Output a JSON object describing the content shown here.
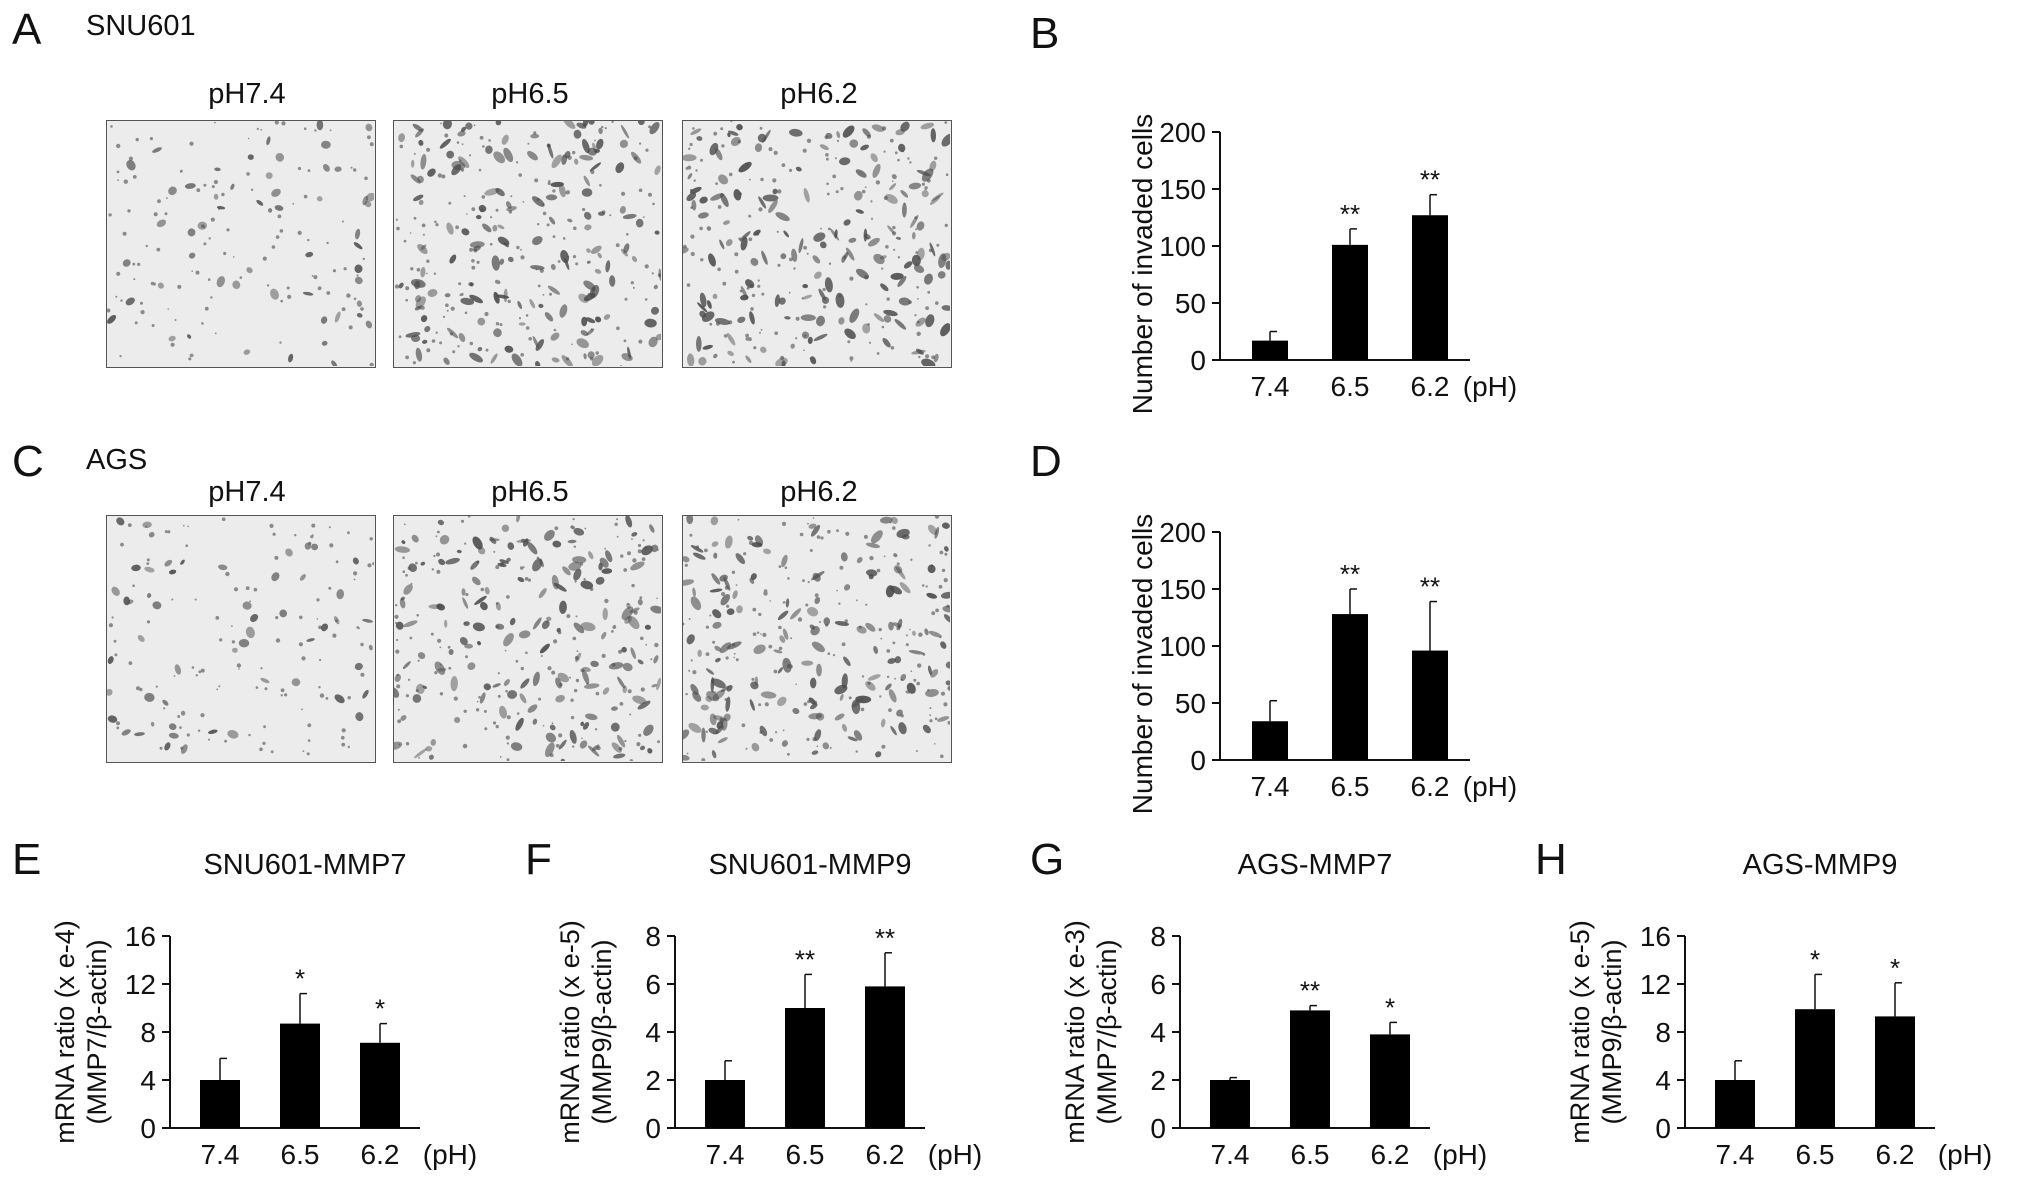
{
  "panels": {
    "A": {
      "letter": "A",
      "cell_line": "SNU601",
      "image_labels": [
        "pH7.4",
        "pH6.5",
        "pH6.2"
      ],
      "images": [
        {
          "label": "pH7.4",
          "density": "low"
        },
        {
          "label": "pH6.5",
          "density": "high"
        },
        {
          "label": "pH6.2",
          "density": "high"
        }
      ]
    },
    "C": {
      "letter": "C",
      "cell_line": "AGS",
      "image_labels": [
        "pH7.4",
        "pH6.5",
        "pH6.2"
      ],
      "images": [
        {
          "label": "pH7.4",
          "density": "low"
        },
        {
          "label": "pH6.5",
          "density": "high"
        },
        {
          "label": "pH6.2",
          "density": "high"
        }
      ]
    },
    "B": {
      "letter": "B"
    },
    "D": {
      "letter": "D"
    },
    "E": {
      "letter": "E"
    },
    "F": {
      "letter": "F"
    },
    "G": {
      "letter": "G"
    },
    "H": {
      "letter": "H"
    }
  },
  "colors": {
    "bar": "#000000",
    "axis": "#111111",
    "image_bg": "#ececec",
    "cells": "#4a4a4a"
  },
  "chart_data": [
    {
      "id": "B",
      "type": "bar",
      "title": "",
      "categories": [
        "7.4",
        "6.5",
        "6.2"
      ],
      "x_unit": "(pH)",
      "ylabel": "Number of invaded cells",
      "ylim": [
        0,
        200
      ],
      "yticks": [
        0,
        50,
        100,
        150,
        200
      ],
      "values": [
        17,
        101,
        127
      ],
      "errors": [
        8,
        14,
        18
      ],
      "significance": [
        "",
        "**",
        "**"
      ]
    },
    {
      "id": "D",
      "type": "bar",
      "title": "",
      "categories": [
        "7.4",
        "6.5",
        "6.2"
      ],
      "x_unit": "(pH)",
      "ylabel": "Number of invaded cells",
      "ylim": [
        0,
        200
      ],
      "yticks": [
        0,
        50,
        100,
        150,
        200
      ],
      "values": [
        34,
        128,
        96
      ],
      "errors": [
        18,
        22,
        43
      ],
      "significance": [
        "",
        "**",
        "**"
      ]
    },
    {
      "id": "E",
      "type": "bar",
      "title": "SNU601-MMP7",
      "categories": [
        "7.4",
        "6.5",
        "6.2"
      ],
      "x_unit": "(pH)",
      "ylabel": "mRNA ratio (x e-4)",
      "ylabel2": "(MMP7/β-actin)",
      "ylim": [
        0,
        16
      ],
      "yticks": [
        0,
        4,
        8,
        12,
        16
      ],
      "values": [
        4.0,
        8.7,
        7.1
      ],
      "errors": [
        1.8,
        2.5,
        1.6
      ],
      "significance": [
        "",
        "*",
        "*"
      ]
    },
    {
      "id": "F",
      "type": "bar",
      "title": "SNU601-MMP9",
      "categories": [
        "7.4",
        "6.5",
        "6.2"
      ],
      "x_unit": "(pH)",
      "ylabel": "mRNA ratio (x e-5)",
      "ylabel2": "(MMP9/β-actin)",
      "ylim": [
        0,
        8
      ],
      "yticks": [
        0,
        2,
        4,
        6,
        8
      ],
      "values": [
        2.0,
        5.0,
        5.9
      ],
      "errors": [
        0.8,
        1.4,
        1.4
      ],
      "significance": [
        "",
        "**",
        "**"
      ]
    },
    {
      "id": "G",
      "type": "bar",
      "title": "AGS-MMP7",
      "categories": [
        "7.4",
        "6.5",
        "6.2"
      ],
      "x_unit": "(pH)",
      "ylabel": "mRNA ratio (x e-3)",
      "ylabel2": "(MMP7/β-actin)",
      "ylim": [
        0,
        8
      ],
      "yticks": [
        0,
        2,
        4,
        6,
        8
      ],
      "values": [
        2.0,
        4.9,
        3.9
      ],
      "errors": [
        0.1,
        0.2,
        0.5
      ],
      "significance": [
        "",
        "**",
        "*"
      ]
    },
    {
      "id": "H",
      "type": "bar",
      "title": "AGS-MMP9",
      "categories": [
        "7.4",
        "6.5",
        "6.2"
      ],
      "x_unit": "(pH)",
      "ylabel": "mRNA ratio (x e-5)",
      "ylabel2": "(MMP9/β-actin)",
      "ylim": [
        0,
        16
      ],
      "yticks": [
        0,
        4,
        8,
        12,
        16
      ],
      "values": [
        4.0,
        9.9,
        9.3
      ],
      "errors": [
        1.6,
        2.9,
        2.8
      ],
      "significance": [
        "",
        "*",
        "*"
      ]
    }
  ]
}
